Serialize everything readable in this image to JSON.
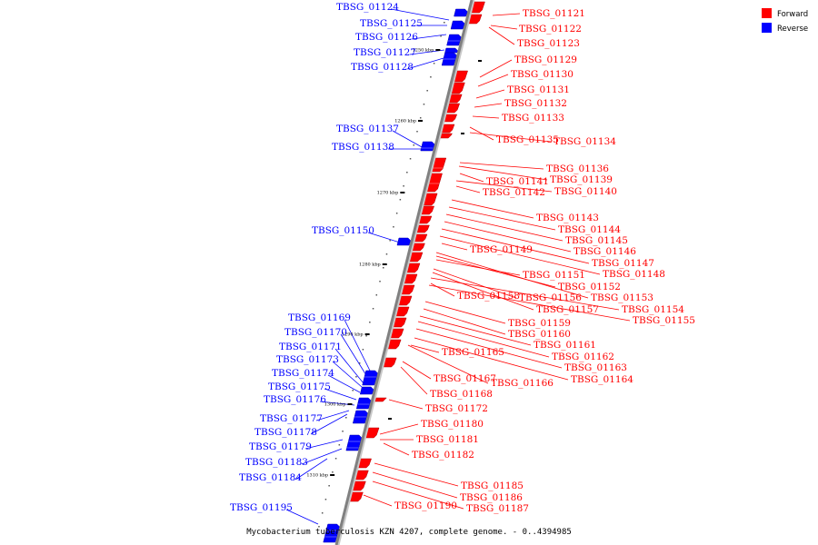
{
  "caption": "Mycobacterium tuberculosis KZN 4207, complete genome. - 0..4394985",
  "legend": [
    {
      "label": "Forward",
      "color": "#ff0000"
    },
    {
      "label": "Reverse",
      "color": "#0000ff"
    }
  ],
  "colors": {
    "forward": "#ff0000",
    "reverse": "#0000ff",
    "axis": "#808080"
  },
  "scale_labels": [
    "1250 kbp",
    "1260 kbp",
    "1270 kbp",
    "1280 kbp",
    "1290 kbp",
    "1300 kbp",
    "1310 kbp"
  ],
  "forward_genes": [
    "TBSG_01121",
    "TBSG_01122",
    "TBSG_01123",
    "TBSG_01129",
    "TBSG_01130",
    "TBSG_01131",
    "TBSG_01132",
    "TBSG_01133",
    "TBSG_01135",
    "TBSG_01134",
    "TBSG_01136",
    "TBSG_01139",
    "TBSG_01141",
    "TBSG_01142",
    "TBSG_01140",
    "TBSG_01143",
    "TBSG_01144",
    "TBSG_01145",
    "TBSG_01146",
    "TBSG_01149",
    "TBSG_01147",
    "TBSG_01148",
    "TBSG_01151",
    "TBSG_01152",
    "TBSG_01153",
    "TBSG_01158",
    "TBSG_01156",
    "TBSG_01157",
    "TBSG_01154",
    "TBSG_01155",
    "TBSG_01159",
    "TBSG_01160",
    "TBSG_01161",
    "TBSG_01165",
    "TBSG_01162",
    "TBSG_01163",
    "TBSG_01167",
    "TBSG_01166",
    "TBSG_01164",
    "TBSG_01168",
    "TBSG_01172",
    "TBSG_01180",
    "TBSG_01181",
    "TBSG_01182",
    "TBSG_01185",
    "TBSG_01186",
    "TBSG_01190",
    "TBSG_01187"
  ],
  "reverse_genes": [
    "TBSG_01124",
    "TBSG_01125",
    "TBSG_01126",
    "TBSG_01127",
    "TBSG_01128",
    "TBSG_01137",
    "TBSG_01138",
    "TBSG_01150",
    "TBSG_01169",
    "TBSG_01170",
    "TBSG_01171",
    "TBSG_01173",
    "TBSG_01174",
    "TBSG_01175",
    "TBSG_01176",
    "TBSG_01177",
    "TBSG_01178",
    "TBSG_01179",
    "TBSG_01183",
    "TBSG_01184",
    "TBSG_01195"
  ]
}
